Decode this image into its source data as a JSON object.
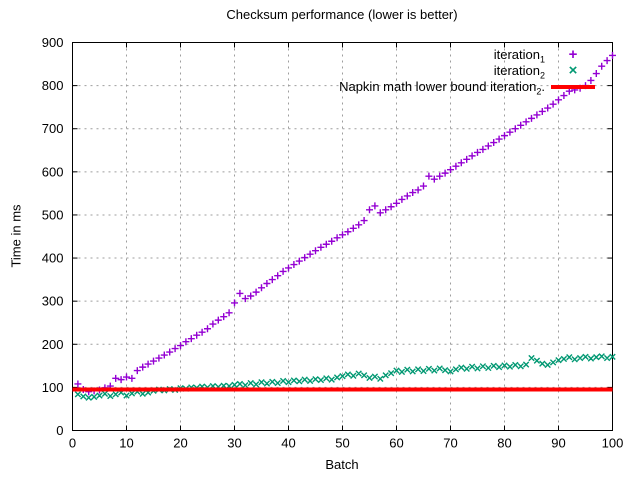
{
  "title": "Checksum performance (lower is better)",
  "chart_data": {
    "type": "scatter",
    "title": "Checksum performance (lower is better)",
    "xlabel": "Batch",
    "ylabel": "Time in ms",
    "xlim": [
      0,
      100
    ],
    "ylim": [
      0,
      900
    ],
    "xticks": [
      0,
      10,
      20,
      30,
      40,
      50,
      60,
      70,
      80,
      90,
      100
    ],
    "yticks": [
      0,
      100,
      200,
      300,
      400,
      500,
      600,
      700,
      800,
      900
    ],
    "grid": true,
    "legend_position": "top-right-inside",
    "x_start": 1,
    "x_step": 1,
    "series": [
      {
        "name": "iteration",
        "sub": "1",
        "suffix": "",
        "marker": "+",
        "color": "#9400d3",
        "values": [
          108,
          95,
          90,
          92,
          94,
          99,
          103,
          121,
          118,
          124,
          121,
          139,
          147,
          154,
          161,
          168,
          175,
          182,
          190,
          197,
          206,
          213,
          221,
          228,
          236,
          247,
          256,
          264,
          273,
          296,
          318,
          306,
          312,
          321,
          331,
          341,
          350,
          359,
          369,
          377,
          385,
          393,
          401,
          409,
          417,
          425,
          432,
          439,
          447,
          454,
          461,
          469,
          477,
          487,
          512,
          521,
          505,
          512,
          519,
          527,
          536,
          544,
          552,
          558,
          567,
          590,
          583,
          590,
          597,
          605,
          613,
          621,
          629,
          637,
          645,
          652,
          660,
          668,
          676,
          684,
          692,
          700,
          708,
          716,
          724,
          732,
          740,
          748,
          757,
          767,
          777,
          787,
          790,
          794,
          800,
          812,
          828,
          845,
          858,
          870
        ]
      },
      {
        "name": "iteration",
        "sub": "2",
        "suffix": "",
        "marker": "×",
        "color": "#009872",
        "values": [
          84,
          79,
          76,
          78,
          81,
          85,
          80,
          84,
          88,
          81,
          86,
          90,
          85,
          88,
          92,
          95,
          93,
          96,
          94,
          98,
          97,
          100,
          99,
          102,
          100,
          103,
          101,
          104,
          103,
          106,
          108,
          105,
          110,
          107,
          112,
          109,
          113,
          110,
          115,
          112,
          116,
          114,
          118,
          115,
          119,
          117,
          121,
          118,
          123,
          126,
          130,
          127,
          132,
          128,
          122,
          125,
          120,
          128,
          133,
          139,
          136,
          141,
          137,
          142,
          138,
          143,
          139,
          144,
          140,
          137,
          142,
          146,
          143,
          148,
          144,
          149,
          145,
          150,
          147,
          151,
          148,
          152,
          149,
          153,
          168,
          162,
          155,
          152,
          158,
          163,
          166,
          170,
          165,
          168,
          171,
          167,
          170,
          172,
          168,
          171
        ]
      },
      {
        "name": "Napkin math lower bound iteration",
        "sub": "2",
        "suffix": ".",
        "type": "hline",
        "color": "#ff0000",
        "value": 95,
        "linewidth": 4
      }
    ]
  }
}
